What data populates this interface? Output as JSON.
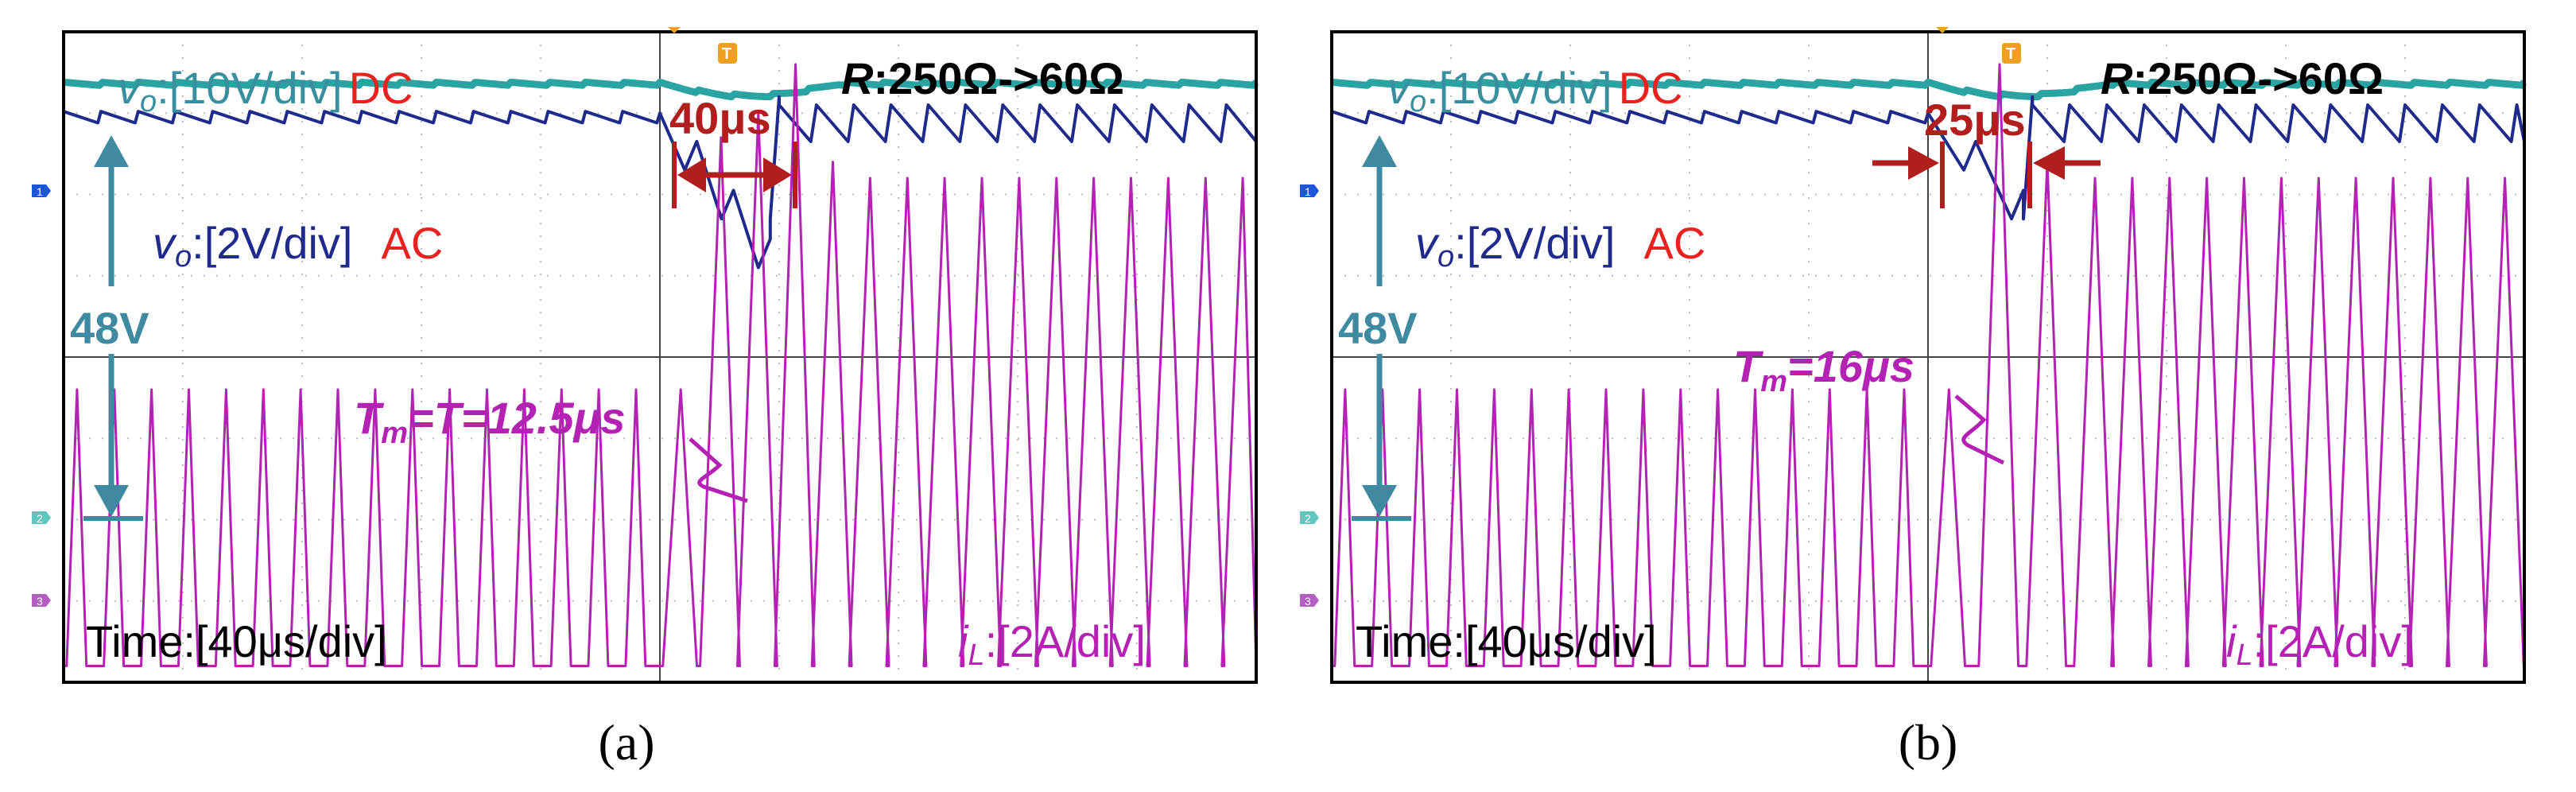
{
  "colors": {
    "dc": "#2aa3a3",
    "dc_text": "#3a8f9f",
    "ac": "#1f2a8c",
    "il": "#b322b3",
    "red": "#e8231f",
    "dark_red": "#b01e1e",
    "arrow_teal": "#3f8aa0",
    "grid": "#bdbdbd",
    "frame": "#000000",
    "trigger": "#f0a020",
    "ch1": "#1a56d6",
    "ch2": "#5fc7c0",
    "ch3": "#b35fc0"
  },
  "chart_data": [
    {
      "type": "line",
      "panel": "a",
      "caption": "(a)",
      "load_step_label": "R:250Ω->60Ω",
      "load_step_R": "R",
      "load_step_rest": ":250Ω->60Ω",
      "recovery_label": "40μs",
      "recovery_time_us": 40,
      "tm_label_T": "T",
      "tm_label_sub": "m",
      "tm_label_rest": "=T=12.5μs",
      "tm_us": 12.5,
      "switching_period_us": 12.5,
      "time_div_label": "Time:[40μs/div]",
      "time_per_div_us": 40,
      "x_divisions": 10,
      "y_divisions": 8,
      "step_time_us": 200,
      "dc_level_label": "48V",
      "trigger_marker": "T",
      "channels": [
        {
          "id": "1",
          "name": "vo AC",
          "label_v": "v",
          "label_sub": "o",
          "label_scale": ":[2V/div]",
          "label_coupling": "AC",
          "scale": "2V/div",
          "coupling": "AC"
        },
        {
          "id": "2",
          "name": "vo DC",
          "label_v": "v",
          "label_sub": "o",
          "label_scale": ":[10V/div]",
          "label_coupling": "DC",
          "scale": "10V/div",
          "coupling": "DC"
        },
        {
          "id": "3",
          "name": "iL",
          "label_v": "i",
          "label_sub": "L",
          "label_scale": ":[2A/div]",
          "scale": "2A/div"
        }
      ],
      "series": [
        {
          "name": "vo_AC",
          "x_us": [
            0,
            12.5,
            25,
            37.5,
            50,
            62.5,
            75,
            87.5,
            100,
            112.5,
            125,
            137.5,
            150,
            162.5,
            175,
            187.5,
            200,
            212.5,
            225,
            237.5,
            240,
            252.5,
            265,
            277.5,
            290,
            302.5,
            315,
            327.5,
            340,
            352.5,
            365,
            377.5,
            390,
            400
          ],
          "y_div": [
            1.0,
            1.05,
            1.05,
            1.05,
            1.05,
            1.05,
            1.05,
            1.05,
            1.05,
            1.05,
            1.05,
            1.05,
            1.05,
            1.05,
            1.05,
            1.05,
            1.0,
            1.4,
            1.8,
            2.2,
            2.4,
            0.95,
            1.0,
            1.0,
            1.0,
            1.0,
            1.0,
            1.0,
            1.0,
            1.0,
            1.0,
            1.0,
            1.0,
            1.0
          ]
        },
        {
          "name": "iL_peak",
          "x_us": [
            0,
            12.5,
            25,
            37.5,
            50,
            62.5,
            75,
            87.5,
            100,
            112.5,
            125,
            137.5,
            150,
            162.5,
            175,
            187.5,
            200,
            212.5,
            225,
            237.5,
            250,
            262.5,
            275,
            287.5,
            300,
            312.5,
            325,
            337.5,
            350,
            362.5,
            375,
            387.5
          ],
          "y_div": [
            3.4,
            3.4,
            3.4,
            3.4,
            3.4,
            3.4,
            3.4,
            3.4,
            3.4,
            3.4,
            3.4,
            3.4,
            3.4,
            3.4,
            3.4,
            3.4,
            3.4,
            6.5,
            6.8,
            7.4,
            6.2,
            6.0,
            6.0,
            6.0,
            6.0,
            6.0,
            6.0,
            6.0,
            6.0,
            6.0,
            6.0,
            6.0
          ]
        }
      ]
    },
    {
      "type": "line",
      "panel": "b",
      "caption": "(b)",
      "load_step_label": "R:250Ω->60Ω",
      "load_step_R": "R",
      "load_step_rest": ":250Ω->60Ω",
      "recovery_label": "25μs",
      "recovery_time_us": 25,
      "tm_label_T": "T",
      "tm_label_sub": "m",
      "tm_label_rest": "=16μs",
      "tm_us": 16,
      "switching_period_us": 12.5,
      "time_div_label": "Time:[40μs/div]",
      "time_per_div_us": 40,
      "x_divisions": 10,
      "y_divisions": 8,
      "step_time_us": 200,
      "dc_level_label": "48V",
      "trigger_marker": "T",
      "channels": [
        {
          "id": "1",
          "name": "vo AC",
          "label_v": "v",
          "label_sub": "o",
          "label_scale": ":[2V/div]",
          "label_coupling": "AC",
          "scale": "2V/div",
          "coupling": "AC"
        },
        {
          "id": "2",
          "name": "vo DC",
          "label_v": "v",
          "label_sub": "o",
          "label_scale": ":[10V/div]",
          "label_coupling": "DC",
          "scale": "10V/div",
          "coupling": "DC"
        },
        {
          "id": "3",
          "name": "iL",
          "label_v": "i",
          "label_sub": "L",
          "label_scale": ":[2A/div]",
          "scale": "2A/div"
        }
      ],
      "series": [
        {
          "name": "vo_AC",
          "x_us": [
            0,
            12.5,
            25,
            37.5,
            50,
            62.5,
            75,
            87.5,
            100,
            112.5,
            125,
            137.5,
            150,
            162.5,
            175,
            187.5,
            200,
            216,
            232,
            248,
            260.5,
            273,
            285.5,
            298,
            310.5,
            323,
            335.5,
            348,
            360.5,
            373,
            385.5,
            398
          ],
          "y_div": [
            1.0,
            1.05,
            1.05,
            1.05,
            1.05,
            1.05,
            1.05,
            1.05,
            1.05,
            1.05,
            1.05,
            1.05,
            1.05,
            1.05,
            1.05,
            1.05,
            1.0,
            1.6,
            2.4,
            0.95,
            1.0,
            1.0,
            1.0,
            1.0,
            1.0,
            1.0,
            1.0,
            1.0,
            1.0,
            1.0,
            1.0,
            1.0
          ]
        },
        {
          "name": "iL_peak",
          "x_us": [
            0,
            12.5,
            25,
            37.5,
            50,
            62.5,
            75,
            87.5,
            100,
            112.5,
            125,
            137.5,
            150,
            162.5,
            175,
            187.5,
            200,
            216,
            232,
            248,
            260.5,
            273,
            285.5,
            298,
            310.5,
            323,
            335.5,
            348,
            360.5,
            373,
            385.5
          ],
          "y_div": [
            3.4,
            3.4,
            3.4,
            3.4,
            3.4,
            3.4,
            3.4,
            3.4,
            3.4,
            3.4,
            3.4,
            3.4,
            3.4,
            3.4,
            3.4,
            3.4,
            3.4,
            7.4,
            6.2,
            6.0,
            6.0,
            6.0,
            6.0,
            6.0,
            6.0,
            6.0,
            6.0,
            6.0,
            6.0,
            6.0,
            6.0
          ]
        }
      ]
    }
  ]
}
